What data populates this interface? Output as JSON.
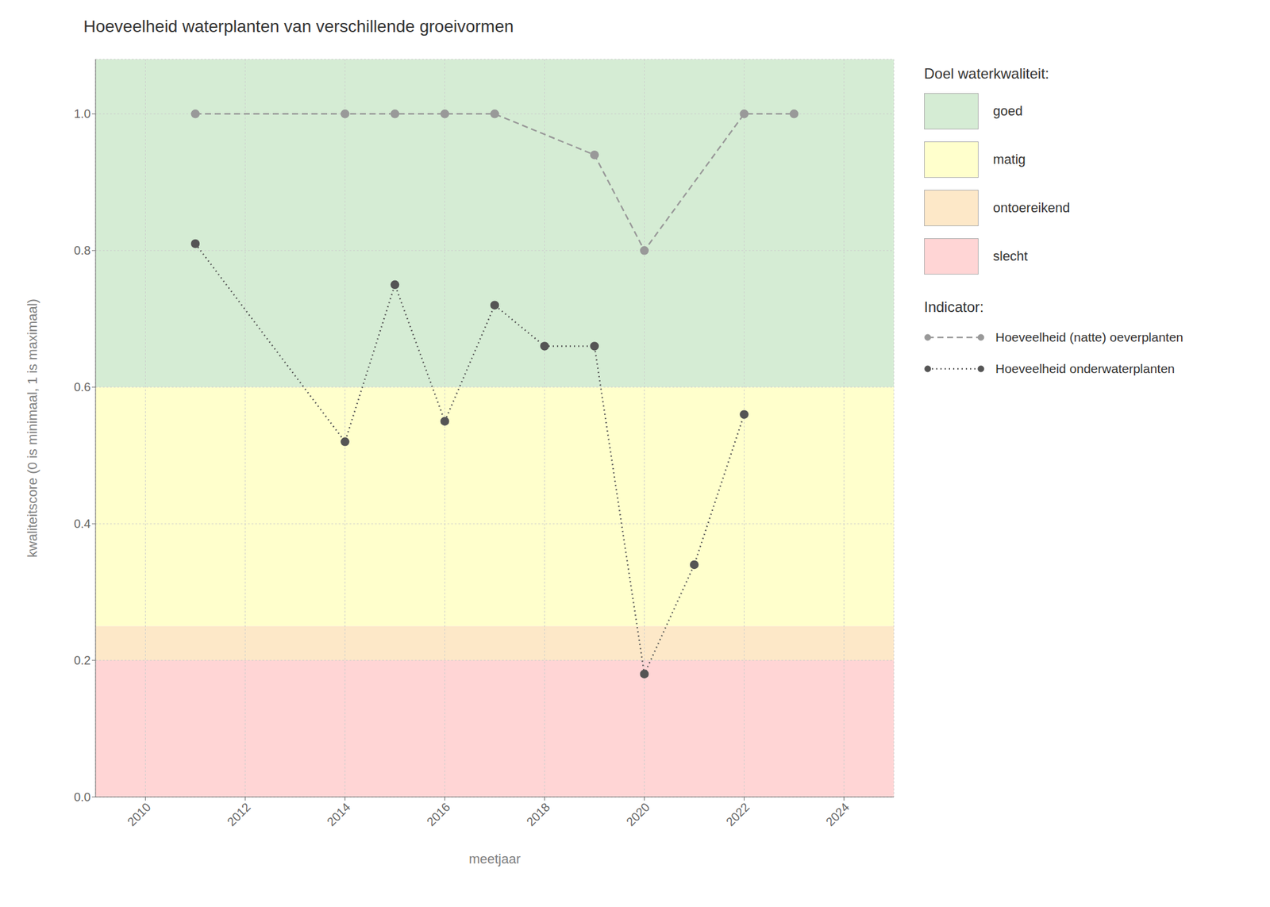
{
  "chart_data": {
    "type": "line",
    "title": "Hoeveelheid waterplanten van verschillende groeivormen",
    "x_label": "meetjaar",
    "y_label": "kwaliteitscore (0 is minimaal, 1 is maximaal)",
    "xlim": [
      2009,
      2025
    ],
    "ylim": [
      0,
      1.08
    ],
    "xticks": [
      2010,
      2012,
      2014,
      2016,
      2018,
      2020,
      2022,
      2024
    ],
    "yticks": [
      {
        "value": 0,
        "label": "0.0"
      },
      0.2,
      0.4,
      0.6,
      0.8,
      {
        "value": 1,
        "label": "1.0"
      }
    ],
    "grid": true,
    "band_legend_title": "Doel waterkwaliteit:",
    "bands": [
      {
        "label": "goed",
        "ymin": 0.6,
        "ymax": 1.08,
        "color": "#d5ecd4"
      },
      {
        "label": "matig",
        "ymin": 0.25,
        "ymax": 0.6,
        "color": "#ffffcc"
      },
      {
        "label": "ontoereikend",
        "ymin": 0.2,
        "ymax": 0.25,
        "color": "#fde8c8"
      },
      {
        "label": "slecht",
        "ymin": 0,
        "ymax": 0.2,
        "color": "#ffd5d5"
      }
    ],
    "series_legend_title": "Indicator:",
    "series": [
      {
        "name": "Hoeveelheid (natte) oeverplanten",
        "color": "#999999",
        "line_style": "dashed",
        "marker": "circle",
        "x": [
          2011,
          2014,
          2015,
          2016,
          2017,
          2019,
          2020,
          2022,
          2023
        ],
        "values": [
          1,
          1,
          1,
          1,
          1,
          0.94,
          0.8,
          1,
          1
        ]
      },
      {
        "name": "Hoeveelheid onderwaterplanten",
        "color": "#555555",
        "line_style": "dotted",
        "marker": "circle",
        "x": [
          2011,
          2014,
          2015,
          2016,
          2017,
          2018,
          2019,
          2020,
          2021,
          2022
        ],
        "values": [
          0.81,
          0.52,
          0.75,
          0.55,
          0.72,
          0.66,
          0.66,
          0.18,
          0.34,
          0.56
        ]
      }
    ]
  }
}
